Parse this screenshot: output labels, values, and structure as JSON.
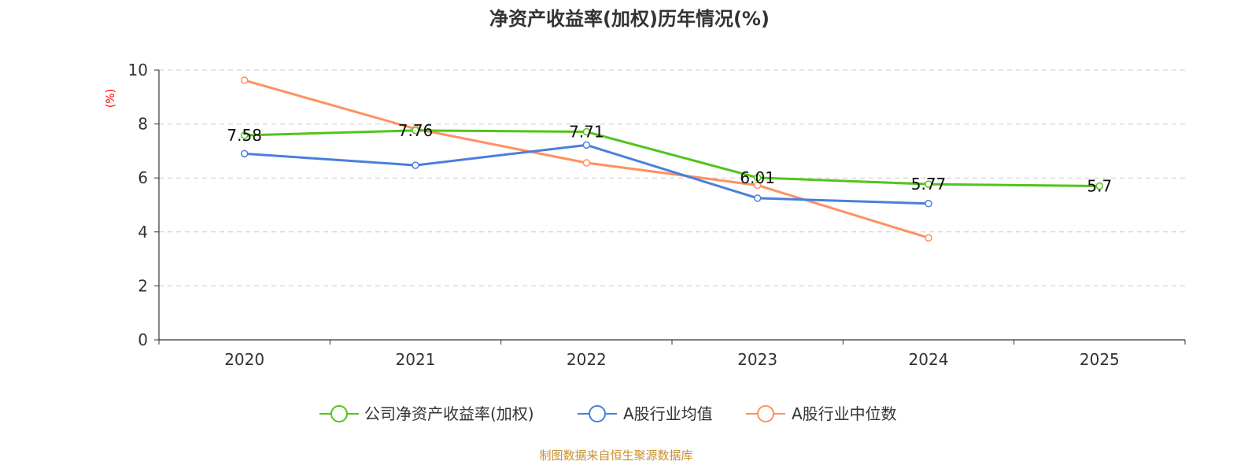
{
  "chart_data": {
    "type": "line",
    "title": "净资产收益率(加权)历年情况(%)",
    "ylabel": "(%)",
    "xlabel": "",
    "categories": [
      "2020",
      "2021",
      "2022",
      "2023",
      "2024",
      "2025"
    ],
    "ylim": [
      0,
      10
    ],
    "yticks": [
      0,
      2,
      4,
      6,
      8,
      10
    ],
    "grid": true,
    "legend_position": "bottom",
    "series": [
      {
        "name": "公司净资产收益率(加权)",
        "color": "#52c41a",
        "values": [
          7.58,
          7.76,
          7.71,
          6.01,
          5.77,
          5.7
        ],
        "labels": [
          "7.58",
          "7.76",
          "7.71",
          "6.01",
          "5.77",
          "5.7"
        ]
      },
      {
        "name": "A股行业均值",
        "color": "#4a7fdc",
        "values": [
          6.9,
          6.47,
          7.22,
          5.25,
          5.05,
          null
        ]
      },
      {
        "name": "A股行业中位数",
        "color": "#ff9060",
        "values": [
          9.62,
          7.82,
          6.56,
          5.73,
          3.78,
          null
        ]
      }
    ]
  },
  "footer": {
    "source": "制图数据来自恒生聚源数据库"
  }
}
